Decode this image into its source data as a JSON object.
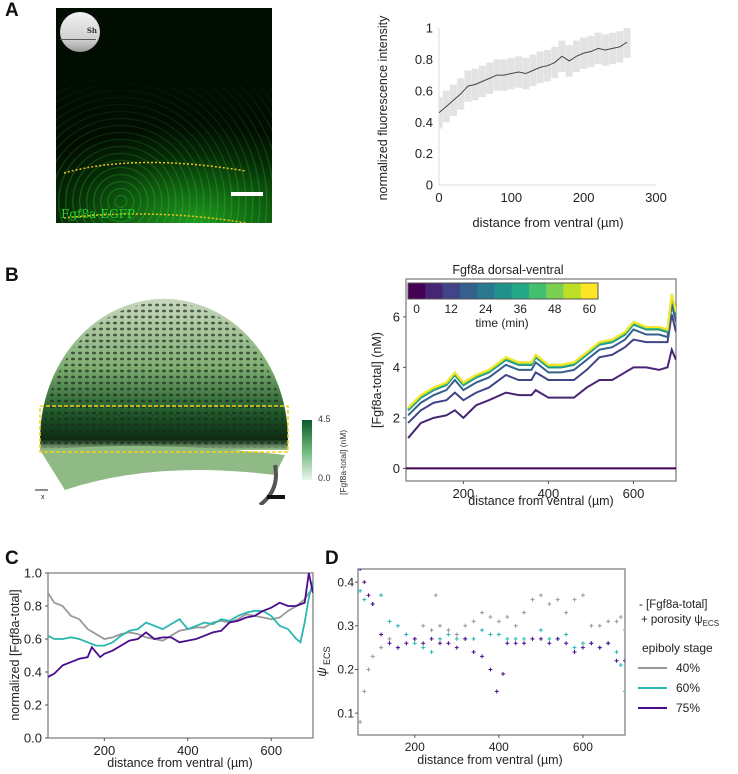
{
  "panels": {
    "A": {
      "label": "A",
      "inset_text": "Sh",
      "image_label": "Fgf8a-EGFP"
    },
    "B": {
      "label": "B",
      "colorbar": {
        "max": "4.5",
        "min": "0.0",
        "label": "[Fgf8a-total] (nM)"
      },
      "axes_labels": {
        "x": "x",
        "y": "y",
        "z": "z"
      }
    },
    "C": {
      "label": "C"
    },
    "D": {
      "label": "D"
    }
  },
  "colors": {
    "gray": "#999999",
    "teal": "#2ab7b0",
    "purple": "#4b0c8f",
    "yellow_dash": "#f2d21b"
  },
  "chart_data": [
    {
      "id": "A",
      "type": "line",
      "xlabel": "distance from ventral (µm)",
      "ylabel": "normalized fluorescence intensity",
      "xlim": [
        0,
        300
      ],
      "ylim": [
        0,
        1
      ],
      "xticks": [
        0,
        100,
        200,
        300
      ],
      "xticklabels": [
        "0",
        "100",
        "200",
        "300"
      ],
      "yticks": [
        0,
        0.2,
        0.4,
        0.6,
        0.8,
        1
      ],
      "yticklabels": [
        "0",
        "0.2",
        "0.4",
        "0.6",
        "0.8",
        "1"
      ],
      "grid": false,
      "error_band": 0.1,
      "x": [
        0,
        10,
        20,
        30,
        40,
        50,
        60,
        70,
        80,
        90,
        100,
        110,
        120,
        130,
        140,
        150,
        160,
        170,
        180,
        190,
        200,
        210,
        220,
        230,
        240,
        250,
        260
      ],
      "y": [
        0.46,
        0.5,
        0.54,
        0.58,
        0.63,
        0.64,
        0.66,
        0.68,
        0.7,
        0.7,
        0.71,
        0.72,
        0.71,
        0.73,
        0.75,
        0.76,
        0.78,
        0.82,
        0.79,
        0.82,
        0.84,
        0.85,
        0.87,
        0.86,
        0.87,
        0.88,
        0.91
      ]
    },
    {
      "id": "B",
      "type": "line",
      "title": "Fgf8a dorsal-ventral",
      "xlabel": "distance from ventral (µm)",
      "ylabel": "[Fgf8a-total] (nM)",
      "xlim": [
        65,
        700
      ],
      "ylim": [
        -0.5,
        7.5
      ],
      "xticks": [
        200,
        400,
        600
      ],
      "xticklabels": [
        "200",
        "400",
        "600"
      ],
      "yticks": [
        0,
        2,
        4,
        6
      ],
      "yticklabels": [
        "0",
        "2",
        "4",
        "6"
      ],
      "legend": {
        "title": "time (min)",
        "ticks": [
          "0",
          "12",
          "24",
          "36",
          "48",
          "60"
        ],
        "placement": "top-left"
      },
      "x": [
        70,
        100,
        130,
        160,
        180,
        200,
        230,
        260,
        300,
        330,
        360,
        370,
        400,
        430,
        460,
        490,
        520,
        550,
        580,
        600,
        630,
        660,
        680,
        690,
        700
      ],
      "series": [
        {
          "time": 0,
          "color": "#440154",
          "values": [
            0,
            0,
            0,
            0,
            0,
            0,
            0,
            0,
            0,
            0,
            0,
            0,
            0,
            0,
            0,
            0,
            0,
            0,
            0,
            0,
            0,
            0,
            0,
            0,
            0
          ]
        },
        {
          "time": 6,
          "color": "#482475",
          "values": [
            1.2,
            1.8,
            2.0,
            2.1,
            2.3,
            2.0,
            2.5,
            2.7,
            3.0,
            2.9,
            2.9,
            3.1,
            2.8,
            2.8,
            2.8,
            3.2,
            3.5,
            3.5,
            3.8,
            4.0,
            4.0,
            3.9,
            4.0,
            4.7,
            4.3
          ]
        },
        {
          "time": 12,
          "color": "#414487",
          "values": [
            1.8,
            2.3,
            2.6,
            2.7,
            3.0,
            2.7,
            3.0,
            3.2,
            3.7,
            3.5,
            3.5,
            3.8,
            3.5,
            3.5,
            3.5,
            3.9,
            4.4,
            4.5,
            4.8,
            5.1,
            5.0,
            5.0,
            5.0,
            6.1,
            5.4
          ]
        },
        {
          "time": 18,
          "color": "#355f8d",
          "values": [
            2.1,
            2.6,
            2.9,
            3.1,
            3.5,
            3.1,
            3.4,
            3.6,
            4.1,
            3.9,
            3.9,
            4.2,
            3.8,
            3.8,
            3.9,
            4.3,
            4.7,
            4.8,
            5.1,
            5.5,
            5.3,
            5.3,
            5.2,
            6.5,
            5.8
          ]
        },
        {
          "time": 24,
          "color": "#2a788e",
          "values": [
            2.3,
            2.8,
            3.1,
            3.3,
            3.7,
            3.3,
            3.6,
            3.8,
            4.3,
            4.1,
            4.1,
            4.4,
            4.0,
            4.0,
            4.1,
            4.5,
            4.9,
            5.0,
            5.3,
            5.7,
            5.5,
            5.5,
            5.4,
            6.8,
            6.1
          ]
        },
        {
          "time": 30,
          "color": "#21918c",
          "values": [
            2.3,
            2.8,
            3.1,
            3.3,
            3.7,
            3.3,
            3.6,
            3.8,
            4.3,
            4.1,
            4.1,
            4.4,
            4.0,
            4.0,
            4.1,
            4.5,
            4.9,
            5.0,
            5.3,
            5.7,
            5.5,
            5.5,
            5.4,
            6.8,
            6.1
          ]
        },
        {
          "time": 36,
          "color": "#22a884",
          "values": [
            2.35,
            2.85,
            3.15,
            3.35,
            3.75,
            3.35,
            3.65,
            3.85,
            4.35,
            4.15,
            4.15,
            4.45,
            4.05,
            4.05,
            4.15,
            4.55,
            4.95,
            5.05,
            5.35,
            5.75,
            5.55,
            5.55,
            5.45,
            6.85,
            6.15
          ]
        },
        {
          "time": 42,
          "color": "#44bf70",
          "values": [
            2.35,
            2.85,
            3.15,
            3.35,
            3.75,
            3.35,
            3.65,
            3.85,
            4.35,
            4.15,
            4.15,
            4.45,
            4.05,
            4.05,
            4.15,
            4.55,
            4.95,
            5.05,
            5.35,
            5.75,
            5.55,
            5.55,
            5.45,
            6.85,
            6.15
          ]
        },
        {
          "time": 48,
          "color": "#7ad151",
          "values": [
            2.4,
            2.9,
            3.2,
            3.4,
            3.8,
            3.4,
            3.7,
            3.9,
            4.4,
            4.2,
            4.2,
            4.5,
            4.1,
            4.1,
            4.2,
            4.6,
            5.0,
            5.1,
            5.4,
            5.8,
            5.6,
            5.6,
            5.5,
            6.9,
            6.2
          ]
        },
        {
          "time": 54,
          "color": "#bddf26",
          "values": [
            2.4,
            2.9,
            3.2,
            3.4,
            3.8,
            3.4,
            3.7,
            3.9,
            4.4,
            4.2,
            4.2,
            4.5,
            4.1,
            4.1,
            4.2,
            4.6,
            5.0,
            5.1,
            5.4,
            5.8,
            5.6,
            5.6,
            5.5,
            6.9,
            6.2
          ]
        },
        {
          "time": 60,
          "color": "#fde725",
          "values": [
            2.4,
            2.9,
            3.2,
            3.4,
            3.8,
            3.4,
            3.7,
            3.9,
            4.4,
            4.2,
            4.2,
            4.5,
            4.1,
            4.1,
            4.2,
            4.6,
            5.0,
            5.1,
            5.4,
            5.8,
            5.6,
            5.6,
            5.5,
            6.9,
            6.2
          ]
        }
      ]
    },
    {
      "id": "C",
      "type": "line",
      "xlabel": "distance from ventral (µm)",
      "ylabel": "normalized [Fgf8a-total]",
      "xlim": [
        65,
        700
      ],
      "ylim": [
        0,
        1
      ],
      "xticks": [
        200,
        400,
        600
      ],
      "xticklabels": [
        "200",
        "400",
        "600"
      ],
      "yticks": [
        0,
        0.2,
        0.4,
        0.6,
        0.8,
        1.0
      ],
      "yticklabels": [
        "0.0",
        "0.2",
        "0.4",
        "0.6",
        "0.8",
        "1.0"
      ],
      "series": [
        {
          "name": "40%",
          "color": "#999999",
          "x": [
            65,
            80,
            100,
            120,
            140,
            160,
            180,
            200,
            220,
            240,
            260,
            280,
            300,
            320,
            340,
            360,
            380,
            400,
            420,
            440,
            460,
            480,
            500,
            520,
            540,
            560,
            580,
            600,
            620,
            640,
            660,
            680,
            690,
            700
          ],
          "values": [
            0.88,
            0.82,
            0.8,
            0.74,
            0.72,
            0.66,
            0.63,
            0.6,
            0.61,
            0.63,
            0.64,
            0.63,
            0.61,
            0.6,
            0.59,
            0.62,
            0.65,
            0.66,
            0.67,
            0.67,
            0.7,
            0.71,
            0.7,
            0.72,
            0.75,
            0.74,
            0.73,
            0.72,
            0.73,
            0.77,
            0.8,
            0.84,
            0.88,
            0.9
          ]
        },
        {
          "name": "60%",
          "color": "#2ab7b0",
          "x": [
            65,
            80,
            100,
            120,
            140,
            160,
            180,
            200,
            220,
            240,
            260,
            280,
            300,
            320,
            340,
            360,
            380,
            400,
            420,
            440,
            460,
            480,
            500,
            520,
            540,
            560,
            580,
            600,
            620,
            640,
            660,
            670,
            680,
            690,
            700
          ],
          "values": [
            0.62,
            0.6,
            0.6,
            0.61,
            0.6,
            0.58,
            0.56,
            0.56,
            0.58,
            0.62,
            0.65,
            0.66,
            0.7,
            0.68,
            0.66,
            0.69,
            0.72,
            0.66,
            0.68,
            0.7,
            0.69,
            0.72,
            0.71,
            0.74,
            0.76,
            0.77,
            0.77,
            0.74,
            0.68,
            0.66,
            0.6,
            0.58,
            0.7,
            0.85,
            0.95
          ]
        },
        {
          "name": "75%",
          "color": "#4b0c8f",
          "x": [
            65,
            80,
            100,
            120,
            140,
            160,
            170,
            180,
            190,
            200,
            220,
            240,
            260,
            280,
            300,
            320,
            340,
            360,
            380,
            400,
            420,
            440,
            460,
            480,
            500,
            520,
            540,
            560,
            580,
            600,
            620,
            640,
            660,
            680,
            690,
            700
          ],
          "values": [
            0.37,
            0.39,
            0.44,
            0.46,
            0.48,
            0.49,
            0.55,
            0.52,
            0.49,
            0.51,
            0.53,
            0.56,
            0.59,
            0.6,
            0.64,
            0.6,
            0.61,
            0.61,
            0.58,
            0.59,
            0.6,
            0.62,
            0.64,
            0.65,
            0.7,
            0.71,
            0.73,
            0.74,
            0.77,
            0.79,
            0.82,
            0.8,
            0.8,
            0.82,
            1.0,
            0.88
          ]
        }
      ]
    },
    {
      "id": "D",
      "type": "scatter",
      "xlabel": "distance from ventral (µm)",
      "ylabel": "ψ",
      "ylabel_sub": "ECS",
      "xlim": [
        65,
        700
      ],
      "ylim": [
        0.05,
        0.43
      ],
      "xticks": [
        200,
        400,
        600
      ],
      "xticklabels": [
        "200",
        "400",
        "600"
      ],
      "yticks": [
        0.1,
        0.2,
        0.3,
        0.4
      ],
      "yticklabels": [
        "0.1",
        "0.2",
        "0.3",
        "0.4"
      ],
      "legend": {
        "line1": "- [Fgf8a-total]",
        "line2": "+ porosity ψ",
        "line2_sub": "ECS",
        "title": "epiboly stage",
        "entries": [
          "40%",
          "60%",
          "75%"
        ],
        "placement": "right"
      },
      "series": [
        {
          "name": "40%",
          "color": "#999999",
          "x": [
            70,
            80,
            90,
            100,
            120,
            140,
            160,
            180,
            200,
            220,
            240,
            250,
            260,
            280,
            300,
            320,
            340,
            360,
            380,
            400,
            420,
            440,
            460,
            480,
            500,
            520,
            540,
            560,
            580,
            600,
            620,
            640,
            660,
            680,
            690,
            700
          ],
          "values": [
            0.08,
            0.15,
            0.2,
            0.23,
            0.25,
            0.27,
            0.25,
            0.28,
            0.27,
            0.3,
            0.29,
            0.37,
            0.3,
            0.29,
            0.28,
            0.3,
            0.31,
            0.33,
            0.32,
            0.31,
            0.32,
            0.3,
            0.33,
            0.36,
            0.37,
            0.35,
            0.36,
            0.33,
            0.36,
            0.37,
            0.3,
            0.3,
            0.31,
            0.31,
            0.32,
            0.29
          ]
        },
        {
          "name": "60%",
          "color": "#2ab7b0",
          "x": [
            70,
            80,
            100,
            120,
            140,
            160,
            180,
            200,
            220,
            240,
            260,
            280,
            300,
            320,
            340,
            360,
            380,
            400,
            420,
            440,
            460,
            480,
            500,
            520,
            540,
            560,
            580,
            600,
            620,
            640,
            660,
            680,
            690,
            700
          ],
          "values": [
            0.38,
            0.36,
            0.35,
            0.37,
            0.31,
            0.3,
            0.28,
            0.26,
            0.25,
            0.24,
            0.27,
            0.28,
            0.27,
            0.27,
            0.27,
            0.29,
            0.28,
            0.28,
            0.27,
            0.27,
            0.27,
            0.27,
            0.29,
            0.27,
            0.27,
            0.28,
            0.25,
            0.26,
            0.26,
            0.25,
            0.26,
            0.24,
            0.21,
            0.15
          ]
        },
        {
          "name": "75%",
          "color": "#4b0c8f",
          "x": [
            70,
            80,
            90,
            100,
            120,
            140,
            160,
            180,
            200,
            220,
            240,
            260,
            280,
            300,
            320,
            340,
            360,
            380,
            395,
            410,
            420,
            440,
            460,
            480,
            500,
            520,
            540,
            560,
            580,
            600,
            620,
            640,
            660,
            680,
            700
          ],
          "values": [
            0.43,
            0.4,
            0.37,
            0.35,
            0.28,
            0.26,
            0.25,
            0.26,
            0.27,
            0.26,
            0.27,
            0.26,
            0.26,
            0.25,
            0.27,
            0.24,
            0.23,
            0.2,
            0.15,
            0.19,
            0.26,
            0.26,
            0.26,
            0.27,
            0.27,
            0.26,
            0.27,
            0.26,
            0.24,
            0.25,
            0.26,
            0.25,
            0.26,
            0.22,
            0.22
          ]
        }
      ]
    }
  ]
}
